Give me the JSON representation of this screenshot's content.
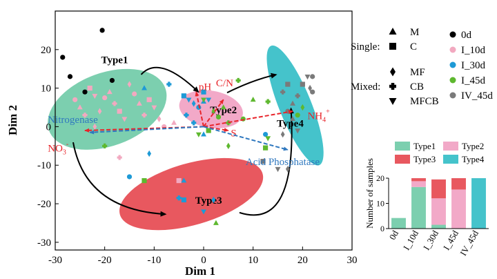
{
  "chart_data": [
    {
      "type": "scatter",
      "xlabel": "Dim 1",
      "ylabel": "Dim 2",
      "xlim": [
        -30,
        30
      ],
      "ylim": [
        -32,
        30
      ],
      "xticks": [
        -30,
        -20,
        -10,
        0,
        10,
        20,
        30
      ],
      "yticks": [
        -30,
        -20,
        -10,
        0,
        10,
        20
      ],
      "grid": false,
      "groups": [
        {
          "name": "Type1",
          "color": "#7ccfaf",
          "center": [
            -19.5,
            4.5
          ],
          "radii": [
            12.5,
            9.5
          ],
          "rotation_deg": -20,
          "label_at": [
            -18,
            16.5
          ]
        },
        {
          "name": "Type2",
          "color": "#f2a9c8",
          "center": [
            1.5,
            4.5
          ],
          "radii": [
            6.5,
            4.8
          ],
          "rotation_deg": 10,
          "label_at": [
            4,
            3.5
          ]
        },
        {
          "name": "Type3",
          "color": "#e8585f",
          "center": [
            -2.5,
            -17.5
          ],
          "radii": [
            15.0,
            8.0
          ],
          "rotation_deg": -16,
          "label_at": [
            1,
            -20
          ]
        },
        {
          "name": "Type4",
          "color": "#45c3cb",
          "center": [
            18.5,
            5.5
          ],
          "radii": [
            13.0,
            4.2
          ],
          "rotation_deg": 68,
          "label_at": [
            17.5,
            0
          ]
        }
      ],
      "series": [
        {
          "name": "0d",
          "color": "#000000",
          "points": [
            [
              -28.5,
              18
            ],
            [
              -27,
              13
            ],
            [
              -20.5,
              25
            ],
            [
              -18.5,
              12
            ],
            [
              -24,
              9
            ]
          ]
        },
        {
          "name": "I_10d",
          "color": "#f2a9c0",
          "points": [
            [
              -26,
              7
            ],
            [
              -25,
              5
            ],
            [
              -24,
              3
            ],
            [
              -23,
              10
            ],
            [
              -22,
              8
            ],
            [
              -21,
              4
            ],
            [
              -20,
              7.5
            ],
            [
              -19,
              9
            ],
            [
              -18,
              6
            ],
            [
              -17,
              4
            ],
            [
              -16,
              2
            ],
            [
              -15,
              11
            ],
            [
              -14,
              8.5
            ],
            [
              -13,
              6
            ],
            [
              -12,
              3
            ],
            [
              -11,
              7
            ],
            [
              -10,
              5
            ],
            [
              -9,
              2
            ],
            [
              -8,
              0
            ],
            [
              -6,
              1
            ],
            [
              -17,
              -8
            ],
            [
              -5,
              -14
            ],
            [
              -3,
              8
            ],
            [
              -22,
              0
            ]
          ]
        },
        {
          "name": "I_30d",
          "color": "#1e9ad6",
          "points": [
            [
              -12,
              10
            ],
            [
              -7,
              11
            ],
            [
              -4,
              8
            ],
            [
              -3,
              7
            ],
            [
              -2,
              6
            ],
            [
              -1,
              5
            ],
            [
              0,
              6.5
            ],
            [
              -3.5,
              3
            ],
            [
              0,
              9
            ],
            [
              1,
              7
            ],
            [
              -11,
              -7
            ],
            [
              -15,
              -13
            ],
            [
              -4,
              -14
            ],
            [
              -5,
              -18.5
            ],
            [
              -4,
              -19
            ],
            [
              0,
              -22
            ],
            [
              2,
              -19
            ],
            [
              12.5,
              -2
            ],
            [
              0,
              -2
            ],
            [
              -2,
              1
            ]
          ]
        },
        {
          "name": "I_45d",
          "color": "#5eb82f",
          "points": [
            [
              -20,
              -5
            ],
            [
              -12,
              -14
            ],
            [
              0,
              7
            ],
            [
              2,
              4
            ],
            [
              3,
              2.5
            ],
            [
              4,
              5
            ],
            [
              5,
              1
            ],
            [
              1,
              -1
            ],
            [
              -1,
              -2
            ],
            [
              5,
              -5
            ],
            [
              8,
              2
            ],
            [
              10,
              7
            ],
            [
              13,
              6.5
            ],
            [
              12.5,
              -5.5
            ],
            [
              13,
              -3
            ],
            [
              20,
              5
            ],
            [
              19,
              3
            ],
            [
              2.5,
              -25
            ],
            [
              7,
              12
            ]
          ]
        },
        {
          "name": "IV_45d",
          "color": "#7a7a7a",
          "points": [
            [
              12,
              -9
            ],
            [
              15,
              -11
            ],
            [
              16,
              -2
            ],
            [
              17,
              4
            ],
            [
              18,
              6
            ],
            [
              19,
              8
            ],
            [
              20,
              11
            ],
            [
              21,
              13
            ],
            [
              21.5,
              10
            ],
            [
              22,
              9
            ],
            [
              18,
              2
            ],
            [
              16,
              9
            ],
            [
              17,
              11
            ],
            [
              19,
              -1
            ],
            [
              17,
              -11
            ],
            [
              22,
              13
            ]
          ]
        }
      ],
      "shapes_legend": {
        "single_label": "Single:",
        "mixed_label": "Mixed:",
        "single": [
          {
            "shape": "triangle-up",
            "label": "M"
          },
          {
            "shape": "square",
            "label": "C"
          }
        ],
        "mixed": [
          {
            "shape": "diamond",
            "label": "MF"
          },
          {
            "shape": "cross",
            "label": "CB"
          },
          {
            "shape": "triangle-down",
            "label": "MFCB"
          }
        ]
      },
      "vectors": [
        {
          "label": "pH",
          "end": [
            -1.5,
            9
          ],
          "color": "#e8242a",
          "label_at": [
            -1,
            9.5
          ]
        },
        {
          "label": "C/N",
          "end": [
            4,
            7
          ],
          "color": "#e8242a",
          "label_at": [
            2.5,
            10.5
          ]
        },
        {
          "label": "S",
          "end": [
            5,
            -1
          ],
          "color": "#e8242a",
          "label_at": [
            5.5,
            -2.5
          ]
        },
        {
          "label": "NH",
          "sub": "4",
          "sup": "+",
          "end": [
            18,
            4
          ],
          "color": "#e8242a",
          "label_at": [
            21,
            2
          ]
        },
        {
          "label": "NO",
          "sub": "3",
          "sup": "-",
          "end": [
            -24,
            -1
          ],
          "color": "#e8242a",
          "label_at": [
            -31.5,
            -6.5
          ]
        },
        {
          "label": "Nitrogenase",
          "end": [
            -23,
            -1.5
          ],
          "color": "#2f78bf",
          "label_at": [
            -31.5,
            1
          ]
        },
        {
          "label": "Acid Phosphatase",
          "end": [
            17,
            -6
          ],
          "color": "#2f78bf",
          "label_at": [
            8.5,
            -10
          ]
        }
      ],
      "arrows": [
        {
          "from": "Type1",
          "to": "Type2"
        },
        {
          "from": "Type2",
          "to": "Type4"
        },
        {
          "from": "Type1",
          "to": "Type3"
        },
        {
          "from": "Type3",
          "to": "Type4"
        }
      ]
    },
    {
      "type": "bar",
      "stacked": true,
      "ylabel": "Number of samples",
      "categories": [
        "0d",
        "I_10d",
        "I_30d",
        "I_45d",
        "IV_45d"
      ],
      "ylim": [
        0,
        20
      ],
      "yticks": [
        0,
        10,
        20
      ],
      "legend_position": "top",
      "series": [
        {
          "name": "Type1",
          "color": "#7ccfaf",
          "values": [
            4.2,
            16.5,
            1.5,
            0,
            0
          ]
        },
        {
          "name": "Type2",
          "color": "#f2a9c8",
          "values": [
            0,
            2.3,
            10.5,
            15.5,
            0
          ]
        },
        {
          "name": "Type3",
          "color": "#e8585f",
          "values": [
            0,
            1.2,
            7.5,
            4.5,
            0
          ]
        },
        {
          "name": "Type4",
          "color": "#45c3cb",
          "values": [
            0,
            0,
            0,
            0,
            20
          ]
        }
      ]
    }
  ]
}
